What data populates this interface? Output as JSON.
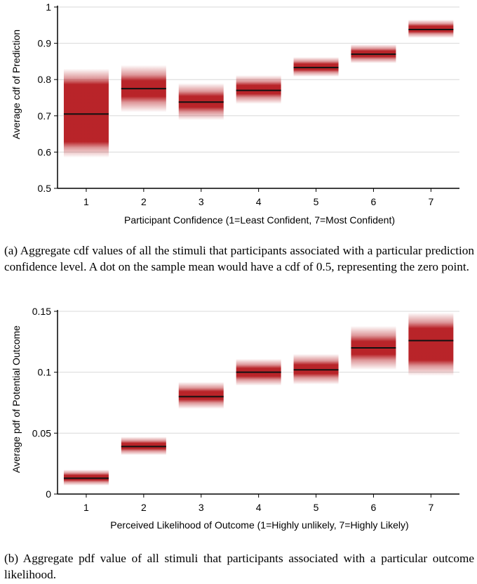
{
  "chart_data": [
    {
      "type": "interval",
      "xlabel": "Participant Confidence (1=Least Confident, 7=Most Confident)",
      "ylabel": "Average cdf of Prediction",
      "categories": [
        "1",
        "2",
        "3",
        "4",
        "5",
        "6",
        "7"
      ],
      "ylim": [
        0.5,
        1
      ],
      "yticks": [
        0.5,
        0.6,
        0.7,
        0.8,
        0.9,
        1
      ],
      "ytick_labels": [
        "0.5",
        "0.6",
        "0.7",
        "0.8",
        "0.9",
        "1"
      ],
      "grid": true,
      "series": [
        {
          "name": "mean",
          "values": [
            0.705,
            0.775,
            0.738,
            0.77,
            0.833,
            0.87,
            0.938
          ]
        },
        {
          "name": "interval_low",
          "values": [
            0.585,
            0.71,
            0.688,
            0.733,
            0.808,
            0.845,
            0.915
          ]
        },
        {
          "name": "interval_high",
          "values": [
            0.83,
            0.84,
            0.79,
            0.812,
            0.862,
            0.897,
            0.965
          ]
        }
      ],
      "color": "#b5191e"
    },
    {
      "type": "interval",
      "xlabel": "Perceived Likelihood of Outcome (1=Highly unlikely, 7=Highly Likely)",
      "ylabel": "Average pdf of Potential Outcome",
      "categories": [
        "1",
        "2",
        "3",
        "4",
        "5",
        "6",
        "7"
      ],
      "ylim": [
        0,
        0.15
      ],
      "yticks": [
        0,
        0.05,
        0.1,
        0.15
      ],
      "ytick_labels": [
        "0",
        "0.05",
        "0.1",
        "0.15"
      ],
      "grid": true,
      "series": [
        {
          "name": "mean",
          "values": [
            0.013,
            0.039,
            0.08,
            0.1,
            0.102,
            0.12,
            0.126
          ]
        },
        {
          "name": "interval_low",
          "values": [
            0.007,
            0.032,
            0.07,
            0.089,
            0.09,
            0.102,
            0.097
          ]
        },
        {
          "name": "interval_high",
          "values": [
            0.02,
            0.047,
            0.092,
            0.111,
            0.115,
            0.138,
            0.149
          ]
        }
      ],
      "color": "#b5191e"
    }
  ],
  "captions": {
    "a": "(a) Aggregate cdf values of all the stimuli that participants associated with a particular prediction confidence level. A dot on the sample mean would have a cdf of 0.5, representing the zero point.",
    "b": "(b) Aggregate pdf value of all stimuli that participants associated with a particular outcome likelihood."
  }
}
